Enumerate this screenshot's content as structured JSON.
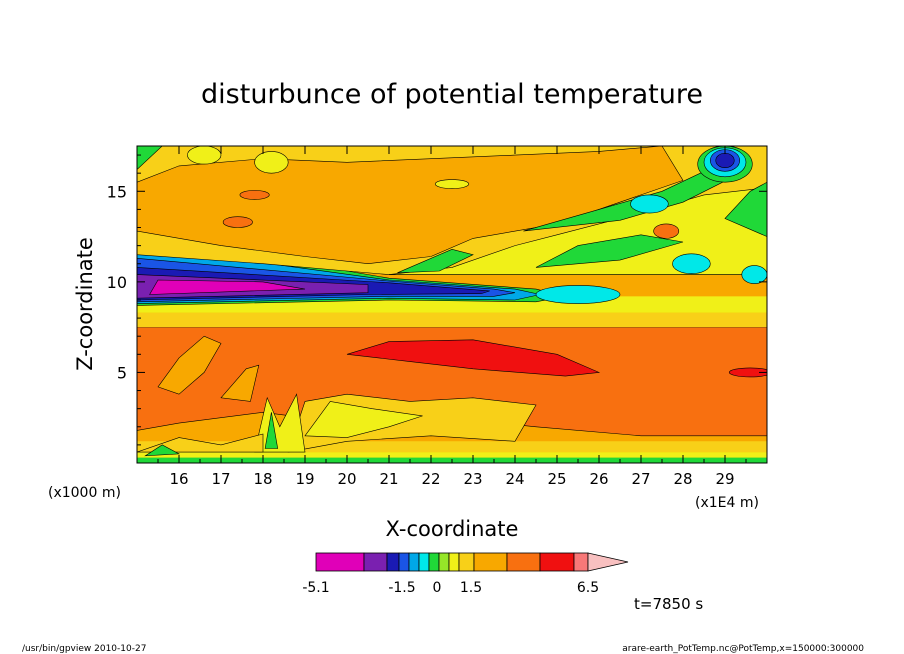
{
  "chart_data": {
    "type": "heatmap",
    "title": "disturbunce of potential temperature",
    "xlabel": "X-coordinate",
    "ylabel": "Z-coordinate",
    "x_unit_left": "(x1000 m)",
    "x_unit_right": "(x1E4 m)",
    "xlim": [
      15.0,
      30.0
    ],
    "ylim": [
      0.0,
      17.5
    ],
    "x_ticks": [
      16,
      17,
      18,
      19,
      20,
      21,
      22,
      23,
      24,
      25,
      26,
      27,
      28,
      29
    ],
    "y_ticks": [
      5,
      10,
      15
    ],
    "time_label": "t=7850 s",
    "colorbar": {
      "tick_labels": [
        "-5.1",
        "-1.5",
        "0",
        "1.5",
        "6.5"
      ],
      "tick_values": [
        -5.1,
        -1.5,
        0,
        1.5,
        6.5
      ],
      "min": -5.1,
      "max": 6.5,
      "colors": [
        "#e000b8",
        "#7a20b0",
        "#1a1ab4",
        "#1a55e6",
        "#00a8e8",
        "#00e8e8",
        "#20d838",
        "#96e628",
        "#f0f018",
        "#f8d018",
        "#f8a800",
        "#f87010",
        "#f01010",
        "#f87878",
        "#f8c0c0"
      ]
    },
    "regions": [
      {
        "name": "background",
        "color": "#f8a000",
        "x": [
          15.0,
          30.0
        ],
        "z": [
          0.0,
          17.5
        ]
      },
      {
        "name": "upper-yellow-band",
        "color": "#f8c818",
        "x": [
          15.0,
          30.0
        ],
        "z": [
          12.5,
          17.5
        ]
      },
      {
        "name": "upper-right-yellow",
        "color": "#f0f020",
        "x": [
          21.0,
          30.0
        ],
        "z": [
          10.2,
          16.5
        ]
      },
      {
        "name": "green-patches",
        "color": "#20d838",
        "x": [
          21.0,
          29.5
        ],
        "z": [
          10.5,
          17.0
        ]
      },
      {
        "name": "cyan-patches",
        "color": "#00e8e8",
        "x": [
          24.5,
          29.0
        ],
        "z": [
          9.0,
          15.0
        ]
      },
      {
        "name": "cold-core-upper-right",
        "color": "#1a1ab4",
        "x": [
          28.6,
          29.2
        ],
        "z": [
          15.8,
          17.5
        ]
      },
      {
        "name": "inversion-cold-layer",
        "color": "#e000b8",
        "x": [
          15.0,
          24.5
        ],
        "z": [
          8.8,
          10.6
        ]
      },
      {
        "name": "mid-orange-layer",
        "color": "#f87010",
        "x": [
          15.0,
          30.0
        ],
        "z": [
          1.8,
          7.5
        ]
      },
      {
        "name": "mid-red-core",
        "color": "#f01010",
        "x": [
          20.0,
          26.0
        ],
        "z": [
          4.8,
          6.8
        ]
      },
      {
        "name": "lower-wave-zone",
        "color": "#f0f020",
        "x": [
          18.0,
          24.5
        ],
        "z": [
          0.5,
          4.0
        ]
      }
    ]
  },
  "footer": {
    "left": "/usr/bin/gpview   2010-10-27",
    "right": "arare-earth_PotTemp.nc@PotTemp,x=150000:300000"
  }
}
